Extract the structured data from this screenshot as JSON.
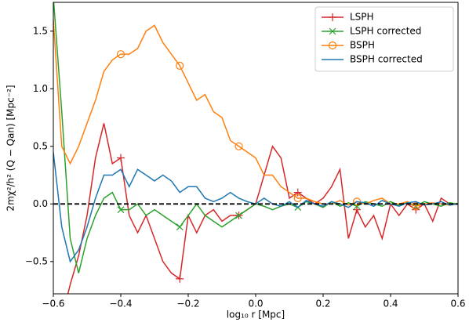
{
  "chart_data": {
    "type": "line",
    "x_label": "log₁₀ r [Mpc]",
    "y_label": "2mχ²/h² (Q − Qan) [Mpc⁻²]",
    "x": [
      -0.6,
      -0.575,
      -0.55,
      -0.525,
      -0.5,
      -0.475,
      -0.45,
      -0.425,
      -0.4,
      -0.375,
      -0.35,
      -0.325,
      -0.3,
      -0.275,
      -0.25,
      -0.225,
      -0.2,
      -0.175,
      -0.15,
      -0.125,
      -0.1,
      -0.075,
      -0.05,
      -0.025,
      0,
      0.025,
      0.05,
      0.075,
      0.1,
      0.125,
      0.15,
      0.175,
      0.2,
      0.225,
      0.25,
      0.275,
      0.3,
      0.325,
      0.35,
      0.375,
      0.4,
      0.425,
      0.45,
      0.475,
      0.5,
      0.525,
      0.55,
      0.575,
      0.6
    ],
    "series": [
      {
        "name": "LSPH",
        "color": "#d62728",
        "marker": "+",
        "values": [
          null,
          -1.0,
          -0.7,
          -0.45,
          -0.1,
          0.4,
          0.7,
          0.35,
          0.4,
          -0.1,
          -0.25,
          -0.1,
          -0.3,
          -0.5,
          -0.6,
          -0.65,
          -0.1,
          -0.25,
          -0.1,
          -0.05,
          -0.15,
          -0.1,
          -0.1,
          -0.05,
          0.0,
          0.25,
          0.5,
          0.4,
          0.05,
          0.1,
          0.05,
          0.0,
          0.05,
          0.15,
          0.3,
          -0.3,
          -0.05,
          -0.2,
          -0.1,
          -0.3,
          0.0,
          -0.1,
          0.0,
          -0.05,
          0.0,
          -0.15,
          0.05,
          0.0,
          0.0
        ]
      },
      {
        "name": "LSPH corrected",
        "color": "#2ca02c",
        "marker": "x",
        "values": [
          1.8,
          0.8,
          -0.3,
          -0.6,
          -0.3,
          -0.1,
          0.05,
          0.1,
          -0.05,
          -0.05,
          0.0,
          -0.1,
          -0.05,
          -0.1,
          -0.15,
          -0.2,
          -0.1,
          0.0,
          -0.1,
          -0.15,
          -0.2,
          -0.15,
          -0.1,
          -0.05,
          0.0,
          -0.02,
          -0.05,
          -0.02,
          0.0,
          -0.03,
          0.02,
          0.0,
          -0.03,
          0.02,
          -0.02,
          0.01,
          -0.02,
          0.02,
          0.0,
          -0.02,
          0.02,
          -0.01,
          0.01,
          -0.02,
          0.02,
          0.0,
          -0.02,
          0.01,
          0.0
        ]
      },
      {
        "name": "BSPH",
        "color": "#ff7f0e",
        "marker": "o",
        "values": [
          1.6,
          0.5,
          0.35,
          0.5,
          0.7,
          0.9,
          1.15,
          1.25,
          1.3,
          1.3,
          1.35,
          1.5,
          1.55,
          1.4,
          1.3,
          1.2,
          1.05,
          0.9,
          0.95,
          0.8,
          0.75,
          0.55,
          0.5,
          0.45,
          0.4,
          0.25,
          0.25,
          0.15,
          0.1,
          0.05,
          0.05,
          0.02,
          0.0,
          0.0,
          0.03,
          -0.01,
          0.02,
          0.0,
          0.03,
          0.05,
          0.0,
          0.0,
          0.02,
          -0.02,
          0.0,
          0.01,
          0.0,
          -0.01,
          0.0
        ]
      },
      {
        "name": "BSPH corrected",
        "color": "#1f77b4",
        "marker": "none",
        "values": [
          0.45,
          -0.2,
          -0.5,
          -0.4,
          -0.2,
          0.05,
          0.25,
          0.25,
          0.3,
          0.15,
          0.3,
          0.25,
          0.2,
          0.25,
          0.2,
          0.1,
          0.15,
          0.15,
          0.05,
          0.02,
          0.05,
          0.1,
          0.05,
          0.02,
          0.0,
          0.05,
          0.0,
          -0.02,
          0.02,
          -0.03,
          0.03,
          0.0,
          -0.02,
          0.02,
          0.0,
          -0.03,
          0.02,
          0.01,
          -0.02,
          0.03,
          0.0,
          -0.02,
          0.01,
          0.02,
          -0.01,
          0.0,
          0.02,
          -0.01,
          0.0
        ]
      }
    ],
    "xlim": [
      -0.6,
      0.6
    ],
    "ylim": [
      -0.78,
      1.75
    ],
    "xticks": [
      {
        "value": -0.6,
        "label": "−0.6"
      },
      {
        "value": -0.4,
        "label": "−0.4"
      },
      {
        "value": -0.2,
        "label": "−0.2"
      },
      {
        "value": 0,
        "label": "0.0"
      },
      0.2,
      0.4,
      0.6
    ],
    "yticks": [
      {
        "value": -0.5,
        "label": "−0.5"
      },
      {
        "value": 0,
        "label": "0.0"
      },
      0.5,
      {
        "value": 1,
        "label": "1.0"
      },
      1.5
    ],
    "hline": 0,
    "legend": "upper right"
  }
}
